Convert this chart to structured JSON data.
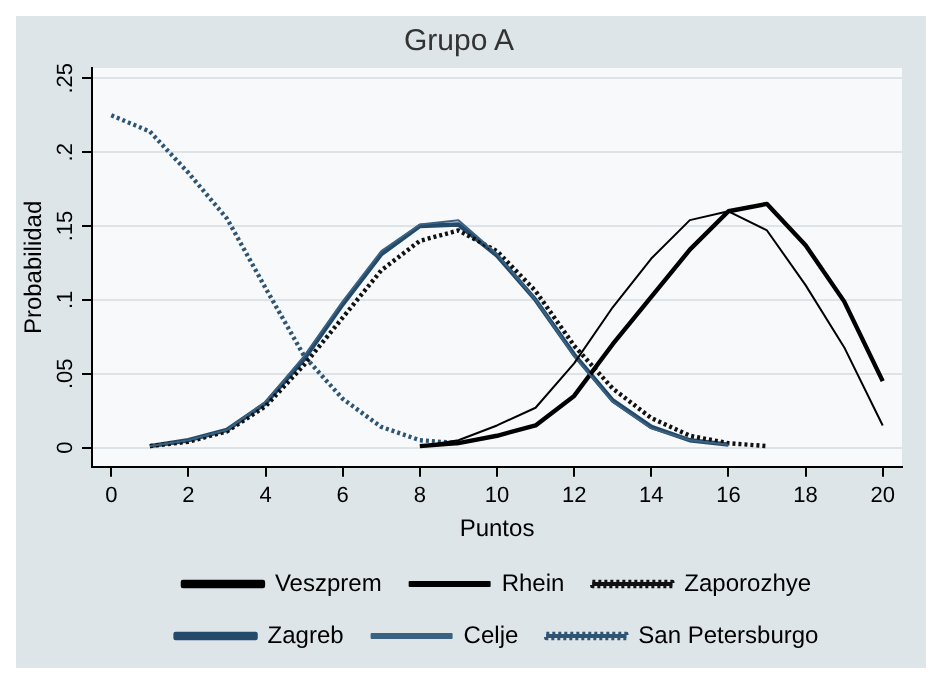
{
  "chart_data": {
    "type": "line",
    "title": "Grupo A",
    "xlabel": "Puntos",
    "ylabel": "Probabilidad",
    "xlim": [
      -0.5,
      20.5
    ],
    "xticks": [
      0,
      2,
      4,
      6,
      8,
      10,
      12,
      14,
      16,
      18,
      20
    ],
    "ylim": [
      -0.013,
      0.257
    ],
    "yticks": [
      {
        "value": 0,
        "label": "0"
      },
      {
        "value": 0.05,
        "label": ".05"
      },
      {
        "value": 0.1,
        "label": ".1"
      },
      {
        "value": 0.15,
        "label": ".15"
      },
      {
        "value": 0.2,
        "label": ".2"
      },
      {
        "value": 0.25,
        "label": ".25"
      }
    ],
    "grid": "y",
    "legend": "bottom",
    "marker": "none",
    "series": [
      {
        "name": "Veszprem",
        "color": "#000000",
        "line_style": "solid",
        "x": [
          8,
          9,
          10,
          11,
          12,
          13,
          14,
          15,
          16,
          17,
          18,
          19,
          20
        ],
        "values": [
          0.001,
          0.003,
          0.008,
          0.015,
          0.035,
          0.07,
          0.102,
          0.134,
          0.16,
          0.165,
          0.137,
          0.099,
          0.045
        ]
      },
      {
        "name": "Rhein",
        "color": "#000000",
        "line_style": "solid",
        "x": [
          8,
          9,
          10,
          11,
          12,
          13,
          14,
          15,
          16,
          17,
          18,
          19,
          20
        ],
        "values": [
          0.001,
          0.005,
          0.015,
          0.027,
          0.057,
          0.095,
          0.128,
          0.154,
          0.16,
          0.147,
          0.11,
          0.068,
          0.015
        ]
      },
      {
        "name": "Zaporozhye",
        "color": "#111111",
        "line_style": "dotted",
        "x": [
          1,
          2,
          3,
          4,
          5,
          6,
          7,
          8,
          9,
          10,
          11,
          12,
          13,
          14,
          15,
          16,
          17
        ],
        "values": [
          0.001,
          0.004,
          0.011,
          0.028,
          0.056,
          0.088,
          0.12,
          0.14,
          0.147,
          0.133,
          0.106,
          0.069,
          0.04,
          0.02,
          0.008,
          0.003,
          0.001
        ]
      },
      {
        "name": "Zagreb",
        "color": "#234a6b",
        "line_style": "solid",
        "x": [
          1,
          2,
          3,
          4,
          5,
          6,
          7,
          8,
          9,
          10,
          11,
          12,
          13,
          14,
          15,
          16
        ],
        "values": [
          0.001,
          0.005,
          0.012,
          0.03,
          0.06,
          0.097,
          0.131,
          0.15,
          0.151,
          0.13,
          0.1,
          0.063,
          0.032,
          0.014,
          0.005,
          0.002
        ]
      },
      {
        "name": "Celje",
        "color": "#3a6280",
        "line_style": "solid",
        "x": [
          1,
          2,
          3,
          4,
          5,
          6,
          7,
          8,
          9,
          10,
          11,
          12,
          13,
          14,
          15,
          16
        ],
        "values": [
          0.001,
          0.005,
          0.012,
          0.031,
          0.062,
          0.099,
          0.133,
          0.151,
          0.154,
          0.131,
          0.1,
          0.062,
          0.031,
          0.013,
          0.005,
          0.002
        ]
      },
      {
        "name": "San Petersburgo",
        "color": "#2f5575",
        "line_style": "dotted",
        "x": [
          0,
          1,
          2,
          3,
          4,
          5,
          6,
          7,
          8,
          9
        ],
        "values": [
          0.225,
          0.214,
          0.186,
          0.155,
          0.108,
          0.062,
          0.033,
          0.014,
          0.005,
          0.003
        ]
      }
    ]
  }
}
